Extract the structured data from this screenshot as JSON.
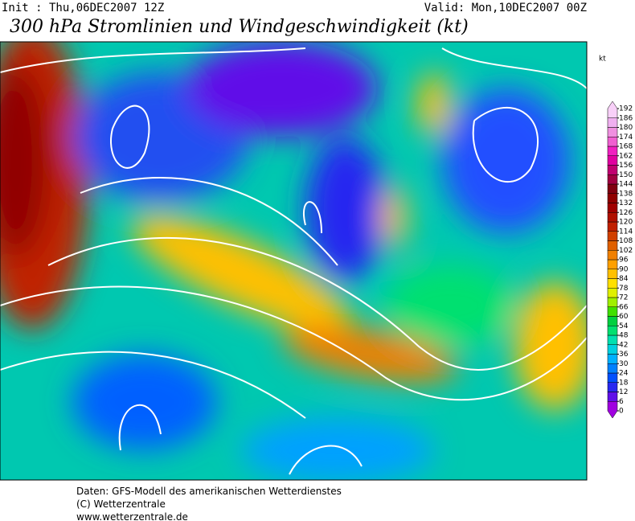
{
  "header": {
    "init": "Init : Thu,06DEC2007 12Z",
    "valid": "Valid: Mon,10DEC2007 00Z",
    "title": "300 hPa Stromlinien und Windgeschwindigkeit (kt)"
  },
  "legend": {
    "unit": "kt",
    "ticks": [
      0,
      6,
      12,
      18,
      24,
      30,
      36,
      42,
      48,
      54,
      60,
      66,
      72,
      78,
      84,
      90,
      96,
      102,
      108,
      114,
      120,
      126,
      132,
      138,
      144,
      150,
      156,
      162,
      168,
      174,
      180,
      186,
      192
    ],
    "colors": [
      "#a000e0",
      "#6010e8",
      "#2828f0",
      "#0050ff",
      "#0080ff",
      "#00b0ff",
      "#00d0e0",
      "#00e0b0",
      "#00e070",
      "#00d040",
      "#40e000",
      "#a0f000",
      "#e0f000",
      "#ffe000",
      "#ffc000",
      "#ffa000",
      "#f08000",
      "#e06000",
      "#d04000",
      "#c02000",
      "#b01000",
      "#a00000",
      "#900000",
      "#800010",
      "#a00040",
      "#c00070",
      "#e000a0",
      "#f020c0",
      "#f060d0",
      "#f090e0",
      "#f0b0f0",
      "#f8d0f8"
    ]
  },
  "footer": {
    "lines": [
      "Daten: GFS-Modell des amerikanischen Wetterdienstes",
      "(C) Wetterzentrale",
      "www.wetterzentrale.de"
    ]
  }
}
